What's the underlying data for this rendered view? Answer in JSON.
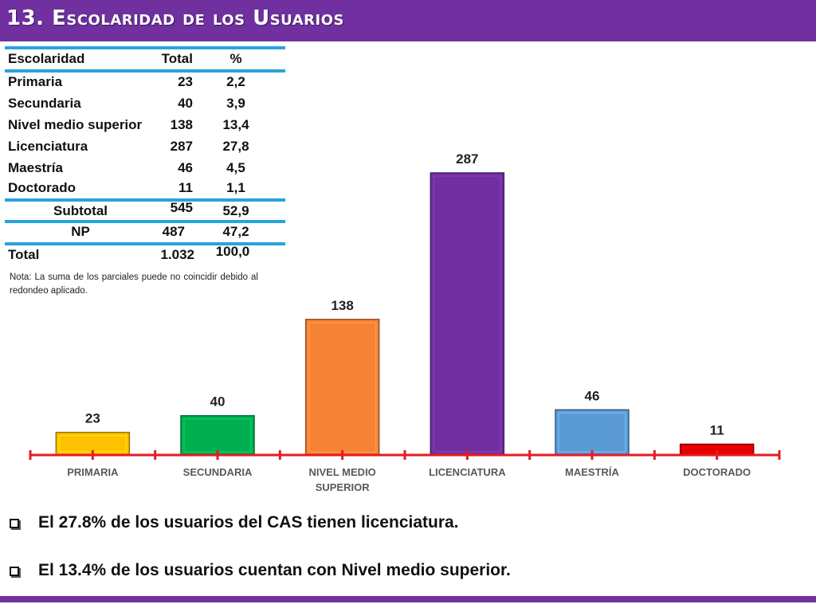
{
  "title": "13. Escolaridad de los Usuarios",
  "table": {
    "headers": [
      "Escolaridad",
      "Total",
      "%"
    ],
    "rows": [
      {
        "label": "Primaria",
        "total": "23",
        "pct": "2,2"
      },
      {
        "label": "Secundaria",
        "total": "40",
        "pct": "3,9"
      },
      {
        "label": "Nivel medio superior",
        "total": "138",
        "pct": "13,4"
      },
      {
        "label": "Licenciatura",
        "total": "287",
        "pct": "27,8"
      },
      {
        "label": "Maestría",
        "total": "46",
        "pct": "4,5"
      },
      {
        "label": "Doctorado",
        "total": "11",
        "pct": "1,1"
      }
    ],
    "subtotal": {
      "label": "Subtotal",
      "total": "545",
      "pct": "52,9"
    },
    "np": {
      "label": "NP",
      "total": "487",
      "pct": "47,2"
    },
    "total": {
      "label": "Total",
      "total": "1.032",
      "pct": "100,0"
    }
  },
  "note": "Nota: La suma de los parciales puede no coincidir debido al redondeo aplicado.",
  "bullets": [
    "El 27.8% de los usuarios del CAS tienen licenciatura.",
    "El 13.4% de los usuarios cuentan con Nivel medio superior."
  ],
  "chart_data": {
    "type": "bar",
    "categories": [
      "PRIMARIA",
      "SECUNDARIA",
      "NIVEL MEDIO SUPERIOR",
      "LICENCIATURA",
      "MAESTRÍA",
      "DOCTORADO"
    ],
    "values": [
      23,
      40,
      138,
      287,
      46,
      11
    ],
    "colors": [
      "#ffc000",
      "#00b050",
      "#f68236",
      "#7030a0",
      "#5b9bd5",
      "#e00000"
    ],
    "axis_color": "#e31b23",
    "data_labels": true,
    "ylim": [
      0,
      287
    ],
    "grid": false,
    "legend": "none"
  },
  "colors": {
    "header": "#7030a0",
    "table_rule": "#29a3dc"
  }
}
